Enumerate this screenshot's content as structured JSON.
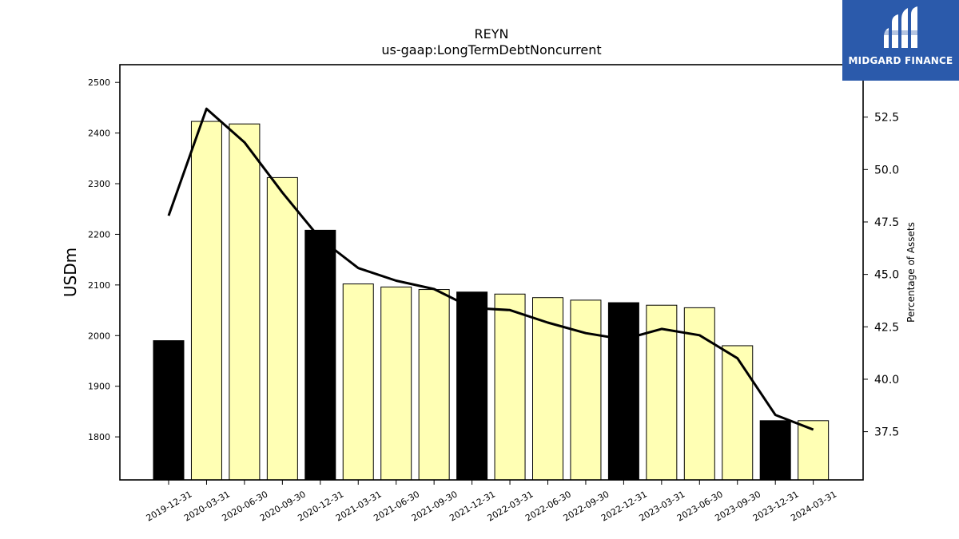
{
  "chart_data": {
    "type": "bar",
    "title": "REYN",
    "subtitle": "us-gaap:LongTermDebtNoncurrent",
    "ylabel": "USDm",
    "y2label": "Percentage of Assets",
    "categories": [
      "2019-12-31",
      "2020-03-31",
      "2020-06-30",
      "2020-09-30",
      "2020-12-31",
      "2021-03-31",
      "2021-06-30",
      "2021-09-30",
      "2021-12-31",
      "2022-03-31",
      "2022-06-30",
      "2022-09-30",
      "2022-12-31",
      "2023-03-31",
      "2023-06-30",
      "2023-09-30",
      "2023-12-31",
      "2024-03-31"
    ],
    "series": [
      {
        "values": [
          1990,
          2423,
          2418,
          2312,
          2208,
          2102,
          2096,
          2091,
          2086,
          2082,
          2075,
          2070,
          2065,
          2060,
          2055,
          1980,
          1832,
          1832
        ]
      },
      {
        "values": [
          47.8,
          52.9,
          51.3,
          48.9,
          46.7,
          45.3,
          44.7,
          44.3,
          43.4,
          43.3,
          42.7,
          42.2,
          41.9,
          42.4,
          42.1,
          41.0,
          38.3,
          37.6
        ]
      }
    ],
    "annual_fill": "#000000",
    "quarter_fill": "#ffffb4",
    "ylim": [
      1715,
      2535
    ],
    "y2lim": [
      35.2,
      55.0
    ],
    "yticks": [
      1800,
      1900,
      2000,
      2100,
      2200,
      2300,
      2400,
      2500
    ],
    "y2ticks": [
      "37.5",
      "40.0",
      "42.5",
      "45.0",
      "47.5",
      "50.0",
      "52.5"
    ],
    "line_color": "#000000"
  },
  "logo": {
    "text": "MIDGARD FINANCE",
    "color": "#2b5aab"
  }
}
